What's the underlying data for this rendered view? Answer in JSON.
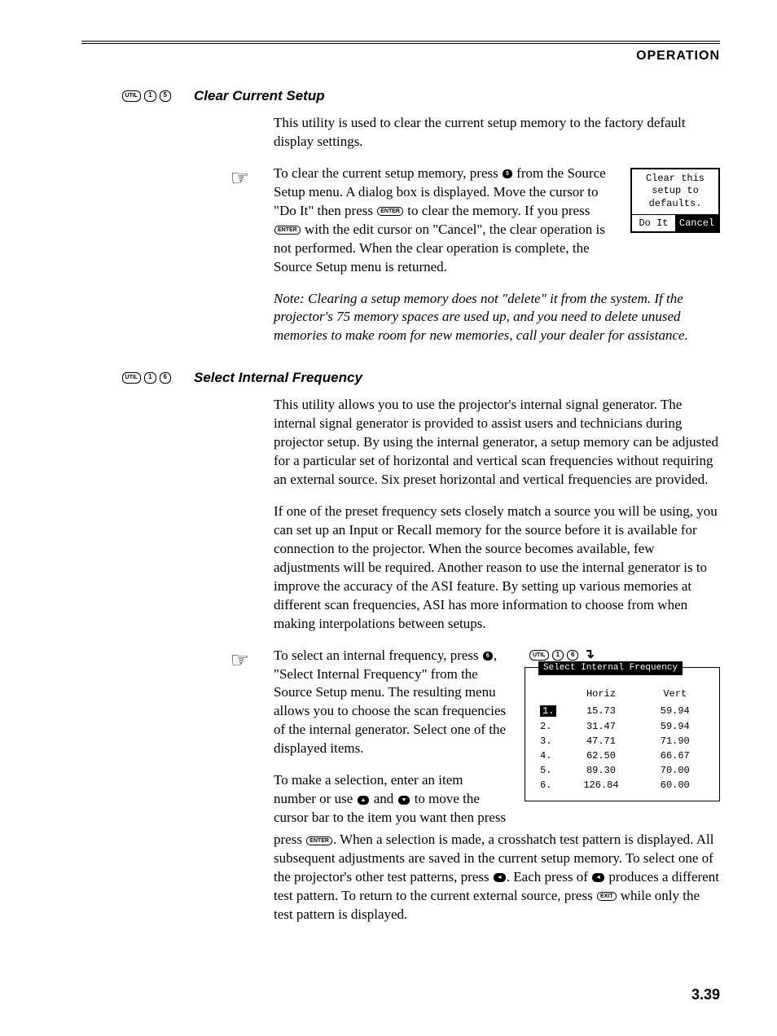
{
  "header": {
    "title": "OPERATION"
  },
  "sections": {
    "clear": {
      "keys": [
        "UTIL",
        "1",
        "5"
      ],
      "title": "Clear Current Setup",
      "p1": "This utility is used to clear the current setup memory to the factory default display settings.",
      "p2a": "To clear the current setup memory, press ",
      "p2_key1": "5",
      "p2b": " from the Source Setup menu. A dialog box is displayed. Move the cursor to \"Do It\" then press ",
      "p2_key2": "ENTER",
      "p2c": " to clear the memory. If you press ",
      "p2_key3": "ENTER",
      "p2d": " with the edit cursor on \"Cancel\", the clear operation is not performed. When the clear operation is complete, the Source Setup menu is returned.",
      "note": "Note:  Clearing a setup memory does not \"delete\" it from the system. If the projector's 75 memory spaces are used up, and you need to delete unused memories to make room for new memories, call your dealer for assistance.",
      "dialog": {
        "line1": "Clear this",
        "line2": "setup to",
        "line3": "defaults.",
        "btn1": "Do It",
        "btn2": "Cancel"
      }
    },
    "freq": {
      "keys": [
        "UTIL",
        "1",
        "6"
      ],
      "title": "Select Internal Frequency",
      "p1": "This utility allows you to use the projector's internal signal generator. The internal signal generator is provided to assist users and technicians during projector setup. By using the internal generator, a setup memory can be adjusted for a particular set of horizontal and vertical scan frequencies without requiring an external source. Six preset horizontal and vertical frequencies are provided.",
      "p2": "If one of the preset frequency sets closely match a source you will be using, you can set up an Input or Recall memory for the source before it is available for connection to the projector. When the source becomes available, few adjustments will be required. Another reason to use the internal generator is to improve the accuracy of the ASI feature. By setting up various memories at different scan frequencies, ASI has more information to choose from when making interpolations between setups.",
      "p3a": "To select an internal frequency, press ",
      "p3_key1": "6",
      "p3b": ", \"Select Internal Frequency\" from the Source Setup menu. The resulting menu allows you to choose the scan frequencies of the internal generator. Select one of the displayed items.",
      "p4a": "To make a selection, enter an item number or use ",
      "p4_key1": "▲",
      "p4b": " and ",
      "p4_key2": "▼",
      "p4c": " to move the cursor bar to the item you want then press ",
      "p4_key3": "ENTER",
      "p4d": ". When a selection is made, a crosshatch test pattern is displayed. All subsequent adjustments are saved in the current setup memory. To select one of the projector's other test patterns, press ",
      "p4_key4": "◄",
      "p4e": ". Each press of ",
      "p4_key5": "◄",
      "p4f": " produces a different test pattern. To return to the current external source, press ",
      "p4_key6": "EXIT",
      "p4g": " while only the test pattern is displayed.",
      "panel": {
        "keys": [
          "UTIL",
          "1",
          "6"
        ],
        "title": "Select Internal Frequency",
        "col1": "Horiz",
        "col2": "Vert",
        "rows": [
          {
            "n": "1.",
            "h": "15.73",
            "v": "59.94",
            "selected": true
          },
          {
            "n": "2.",
            "h": "31.47",
            "v": "59.94",
            "selected": false
          },
          {
            "n": "3.",
            "h": "47.71",
            "v": "71.90",
            "selected": false
          },
          {
            "n": "4.",
            "h": "62.50",
            "v": "66.67",
            "selected": false
          },
          {
            "n": "5.",
            "h": "89.30",
            "v": "70.00",
            "selected": false
          },
          {
            "n": "6.",
            "h": "126.84",
            "v": "60.00",
            "selected": false
          }
        ]
      }
    }
  },
  "page_number": "3.39",
  "colors": {
    "text": "#000000",
    "bg": "#ffffff"
  }
}
